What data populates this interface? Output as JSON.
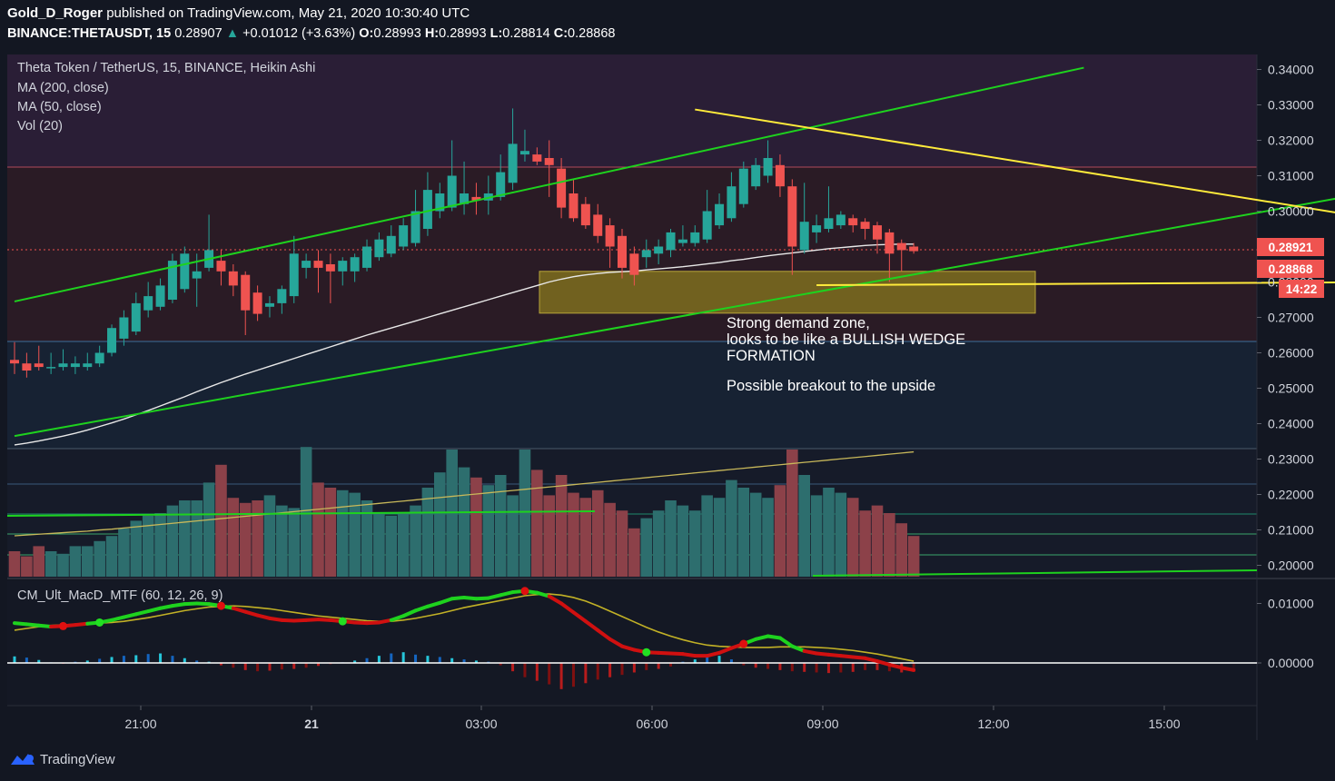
{
  "header": {
    "author": "Gold_D_Roger",
    "published_text": "published on TradingView.com, May 21, 2020 10:30:40 UTC",
    "symbol": "BINANCE:THETAUSDT, 15",
    "last": "0.28907",
    "arrow": "▲",
    "change": "+0.01012 (+3.63%)",
    "o_label": "O:",
    "o": "0.28993",
    "h_label": "H:",
    "h": "0.28993",
    "l_label": "L:",
    "l": "0.28814",
    "c_label": "C:",
    "c": "0.28868"
  },
  "legend": {
    "title": "Theta Token / TetherUS, 15, BINANCE, Heikin Ashi",
    "ma200": "MA (200, close)",
    "ma50": "MA (50, close)",
    "vol": "Vol (20)",
    "macd": "CM_Ult_MacD_MTF (60, 12, 26, 9)"
  },
  "annotation": {
    "line1": "Strong demand zone,",
    "line2": "looks to be like a BULLISH WEDGE",
    "line3": "FORMATION",
    "line4": "Possible breakout to the upside"
  },
  "price_tags": {
    "tag1": "0.28921",
    "tag2": "0.28868",
    "countdown": "14:22"
  },
  "footer": {
    "brand": "TradingView"
  },
  "colors": {
    "background": "#131722",
    "bull": "#26a69a",
    "bear": "#ef5350",
    "trend_green": "#1ed21e",
    "trend_yellow": "#ffeb3b",
    "demand_zone": "#8a7a1e"
  },
  "chart_data": [
    {
      "type": "candlestick",
      "title": "Theta Token / TetherUS, 15, BINANCE, Heikin Ashi",
      "y_axis_ticks": [
        "0.34000",
        "0.33000",
        "0.32000",
        "0.31000",
        "0.30000",
        "0.29000",
        "0.28000",
        "0.27000",
        "0.26000",
        "0.25000",
        "0.24000",
        "0.23000",
        "0.22000",
        "0.21000",
        "0.20000"
      ],
      "x_axis_ticks": [
        "21:00",
        "21",
        "03:00",
        "06:00",
        "09:00",
        "12:00",
        "15:00"
      ],
      "ylim": [
        0.197,
        0.343
      ],
      "candles": [
        {
          "o": 0.258,
          "h": 0.263,
          "l": 0.254,
          "c": 0.257
        },
        {
          "o": 0.257,
          "h": 0.26,
          "l": 0.253,
          "c": 0.255
        },
        {
          "o": 0.257,
          "h": 0.262,
          "l": 0.255,
          "c": 0.256
        },
        {
          "o": 0.256,
          "h": 0.26,
          "l": 0.254,
          "c": 0.256
        },
        {
          "o": 0.256,
          "h": 0.261,
          "l": 0.255,
          "c": 0.257
        },
        {
          "o": 0.256,
          "h": 0.259,
          "l": 0.254,
          "c": 0.257
        },
        {
          "o": 0.256,
          "h": 0.26,
          "l": 0.255,
          "c": 0.257
        },
        {
          "o": 0.257,
          "h": 0.262,
          "l": 0.256,
          "c": 0.26
        },
        {
          "o": 0.26,
          "h": 0.268,
          "l": 0.259,
          "c": 0.267
        },
        {
          "o": 0.264,
          "h": 0.272,
          "l": 0.262,
          "c": 0.27
        },
        {
          "o": 0.266,
          "h": 0.277,
          "l": 0.265,
          "c": 0.274
        },
        {
          "o": 0.272,
          "h": 0.28,
          "l": 0.27,
          "c": 0.276
        },
        {
          "o": 0.273,
          "h": 0.281,
          "l": 0.272,
          "c": 0.279
        },
        {
          "o": 0.275,
          "h": 0.288,
          "l": 0.274,
          "c": 0.286
        },
        {
          "o": 0.278,
          "h": 0.29,
          "l": 0.277,
          "c": 0.288
        },
        {
          "o": 0.281,
          "h": 0.288,
          "l": 0.273,
          "c": 0.283
        },
        {
          "o": 0.284,
          "h": 0.299,
          "l": 0.283,
          "c": 0.289
        },
        {
          "o": 0.286,
          "h": 0.289,
          "l": 0.279,
          "c": 0.283
        },
        {
          "o": 0.283,
          "h": 0.285,
          "l": 0.276,
          "c": 0.279
        },
        {
          "o": 0.282,
          "h": 0.283,
          "l": 0.265,
          "c": 0.272
        },
        {
          "o": 0.277,
          "h": 0.279,
          "l": 0.269,
          "c": 0.271
        },
        {
          "o": 0.273,
          "h": 0.276,
          "l": 0.27,
          "c": 0.274
        },
        {
          "o": 0.274,
          "h": 0.279,
          "l": 0.271,
          "c": 0.278
        },
        {
          "o": 0.276,
          "h": 0.293,
          "l": 0.274,
          "c": 0.288
        },
        {
          "o": 0.284,
          "h": 0.288,
          "l": 0.281,
          "c": 0.286
        },
        {
          "o": 0.286,
          "h": 0.289,
          "l": 0.277,
          "c": 0.284
        },
        {
          "o": 0.285,
          "h": 0.288,
          "l": 0.274,
          "c": 0.283
        },
        {
          "o": 0.283,
          "h": 0.287,
          "l": 0.279,
          "c": 0.286
        },
        {
          "o": 0.283,
          "h": 0.288,
          "l": 0.28,
          "c": 0.287
        },
        {
          "o": 0.284,
          "h": 0.292,
          "l": 0.283,
          "c": 0.29
        },
        {
          "o": 0.287,
          "h": 0.294,
          "l": 0.286,
          "c": 0.292
        },
        {
          "o": 0.288,
          "h": 0.296,
          "l": 0.287,
          "c": 0.293
        },
        {
          "o": 0.29,
          "h": 0.298,
          "l": 0.289,
          "c": 0.296
        },
        {
          "o": 0.291,
          "h": 0.306,
          "l": 0.29,
          "c": 0.3
        },
        {
          "o": 0.295,
          "h": 0.311,
          "l": 0.293,
          "c": 0.306
        },
        {
          "o": 0.3,
          "h": 0.308,
          "l": 0.298,
          "c": 0.305
        },
        {
          "o": 0.301,
          "h": 0.32,
          "l": 0.3,
          "c": 0.31
        },
        {
          "o": 0.302,
          "h": 0.314,
          "l": 0.299,
          "c": 0.305
        },
        {
          "o": 0.304,
          "h": 0.308,
          "l": 0.299,
          "c": 0.303
        },
        {
          "o": 0.303,
          "h": 0.31,
          "l": 0.299,
          "c": 0.305
        },
        {
          "o": 0.304,
          "h": 0.316,
          "l": 0.303,
          "c": 0.311
        },
        {
          "o": 0.308,
          "h": 0.329,
          "l": 0.306,
          "c": 0.319
        },
        {
          "o": 0.316,
          "h": 0.323,
          "l": 0.314,
          "c": 0.317
        },
        {
          "o": 0.316,
          "h": 0.318,
          "l": 0.313,
          "c": 0.314
        },
        {
          "o": 0.315,
          "h": 0.32,
          "l": 0.304,
          "c": 0.313
        },
        {
          "o": 0.312,
          "h": 0.315,
          "l": 0.298,
          "c": 0.301
        },
        {
          "o": 0.305,
          "h": 0.309,
          "l": 0.297,
          "c": 0.298
        },
        {
          "o": 0.302,
          "h": 0.304,
          "l": 0.295,
          "c": 0.296
        },
        {
          "o": 0.299,
          "h": 0.302,
          "l": 0.291,
          "c": 0.293
        },
        {
          "o": 0.296,
          "h": 0.298,
          "l": 0.284,
          "c": 0.29
        },
        {
          "o": 0.293,
          "h": 0.295,
          "l": 0.281,
          "c": 0.284
        },
        {
          "o": 0.288,
          "h": 0.29,
          "l": 0.279,
          "c": 0.282
        },
        {
          "o": 0.287,
          "h": 0.292,
          "l": 0.284,
          "c": 0.289
        },
        {
          "o": 0.288,
          "h": 0.292,
          "l": 0.285,
          "c": 0.29
        },
        {
          "o": 0.289,
          "h": 0.295,
          "l": 0.287,
          "c": 0.294
        },
        {
          "o": 0.291,
          "h": 0.296,
          "l": 0.29,
          "c": 0.292
        },
        {
          "o": 0.291,
          "h": 0.296,
          "l": 0.29,
          "c": 0.294
        },
        {
          "o": 0.292,
          "h": 0.306,
          "l": 0.291,
          "c": 0.3
        },
        {
          "o": 0.296,
          "h": 0.305,
          "l": 0.295,
          "c": 0.302
        },
        {
          "o": 0.298,
          "h": 0.311,
          "l": 0.297,
          "c": 0.307
        },
        {
          "o": 0.302,
          "h": 0.314,
          "l": 0.301,
          "c": 0.312
        },
        {
          "o": 0.307,
          "h": 0.315,
          "l": 0.306,
          "c": 0.313
        },
        {
          "o": 0.31,
          "h": 0.32,
          "l": 0.308,
          "c": 0.315
        },
        {
          "o": 0.313,
          "h": 0.316,
          "l": 0.304,
          "c": 0.307
        },
        {
          "o": 0.307,
          "h": 0.309,
          "l": 0.282,
          "c": 0.29
        },
        {
          "o": 0.289,
          "h": 0.308,
          "l": 0.288,
          "c": 0.297
        },
        {
          "o": 0.294,
          "h": 0.299,
          "l": 0.291,
          "c": 0.296
        },
        {
          "o": 0.295,
          "h": 0.307,
          "l": 0.294,
          "c": 0.298
        },
        {
          "o": 0.296,
          "h": 0.3,
          "l": 0.295,
          "c": 0.299
        },
        {
          "o": 0.298,
          "h": 0.299,
          "l": 0.294,
          "c": 0.296
        },
        {
          "o": 0.297,
          "h": 0.298,
          "l": 0.292,
          "c": 0.295
        },
        {
          "o": 0.296,
          "h": 0.297,
          "l": 0.288,
          "c": 0.292
        },
        {
          "o": 0.294,
          "h": 0.295,
          "l": 0.28,
          "c": 0.288
        },
        {
          "o": 0.291,
          "h": 0.292,
          "l": 0.283,
          "c": 0.289
        },
        {
          "o": 0.29,
          "h": 0.291,
          "l": 0.288,
          "c": 0.2887
        }
      ],
      "volume": [
        50,
        40,
        60,
        50,
        45,
        60,
        60,
        70,
        80,
        95,
        110,
        120,
        125,
        140,
        150,
        150,
        185,
        220,
        155,
        145,
        150,
        160,
        140,
        135,
        255,
        185,
        175,
        170,
        165,
        150,
        125,
        120,
        125,
        140,
        175,
        205,
        250,
        215,
        195,
        180,
        200,
        160,
        250,
        210,
        160,
        200,
        165,
        155,
        170,
        145,
        130,
        95,
        115,
        130,
        150,
        140,
        130,
        160,
        155,
        190,
        175,
        165,
        155,
        180,
        250,
        200,
        160,
        175,
        165,
        155,
        130,
        140,
        125,
        105,
        80
      ],
      "ma200": [
        0.234,
        0.2345,
        0.2351,
        0.2358,
        0.2365,
        0.2373,
        0.2382,
        0.2392,
        0.2402,
        0.2413,
        0.2425,
        0.2437,
        0.245,
        0.2463,
        0.2476,
        0.249,
        0.2503,
        0.2516,
        0.2528,
        0.254,
        0.2551,
        0.2562,
        0.2573,
        0.2584,
        0.2595,
        0.2606,
        0.2617,
        0.2628,
        0.2639,
        0.265,
        0.266,
        0.267,
        0.268,
        0.269,
        0.27,
        0.271,
        0.272,
        0.273,
        0.274,
        0.275,
        0.276,
        0.277,
        0.278,
        0.279,
        0.28,
        0.2808,
        0.2815,
        0.282,
        0.2824,
        0.2827,
        0.2829,
        0.2831,
        0.2834,
        0.2837,
        0.284,
        0.2843,
        0.2847,
        0.2851,
        0.2855,
        0.286,
        0.2864,
        0.2869,
        0.2874,
        0.2878,
        0.2882,
        0.2886,
        0.289,
        0.2894,
        0.2897,
        0.29,
        0.2903,
        0.2905,
        0.2906,
        0.2907,
        0.2907
      ],
      "ma50_volume": [
        95,
        97,
        99,
        101,
        103,
        105,
        107,
        110,
        112,
        115,
        118,
        121,
        124,
        127,
        130,
        133,
        136,
        139,
        142,
        145,
        148,
        151,
        154,
        157,
        160,
        163,
        166,
        169,
        172,
        175,
        178,
        181,
        184,
        187,
        190,
        193,
        196,
        199,
        202,
        205,
        208,
        211,
        214,
        217,
        220,
        223,
        226,
        229,
        232,
        235,
        238,
        241,
        244,
        247,
        250,
        253,
        256,
        259,
        262,
        265,
        268,
        271,
        274,
        277,
        280,
        283,
        286,
        289,
        292,
        295,
        298,
        301,
        304,
        307,
        310
      ],
      "trendlines": [
        {
          "name": "upper green channel",
          "color": "#1ed21e",
          "from": [
            0,
            0.2745
          ],
          "to": [
            88,
            0.3405
          ]
        },
        {
          "name": "lower green channel",
          "color": "#1ed21e",
          "from": [
            0,
            0.2365
          ],
          "to": [
            122,
            0.3117
          ]
        },
        {
          "name": "descending yellow",
          "color": "#ffeb3b",
          "from": [
            56,
            0.3287
          ],
          "to": [
            112,
            0.2978
          ]
        },
        {
          "name": "support yellow",
          "color": "#ffeb3b",
          "from": [
            66,
            0.2791
          ],
          "to": [
            110,
            0.2799
          ]
        }
      ],
      "demand_zone": {
        "y_top": 0.283,
        "y_bottom": 0.2712
      }
    },
    {
      "type": "bar+line",
      "title": "CM_Ult_MacD_MTF (60, 12, 26, 9)",
      "y_axis_ticks": [
        "0.01000",
        "0.00000"
      ],
      "ylim": [
        -0.0075,
        0.0145
      ],
      "macd": [
        0.0067,
        0.0065,
        0.0063,
        0.0061,
        0.0062,
        0.0064,
        0.0066,
        0.0068,
        0.0072,
        0.0077,
        0.0082,
        0.0087,
        0.0092,
        0.0096,
        0.0099,
        0.01,
        0.0099,
        0.0096,
        0.0092,
        0.0086,
        0.008,
        0.0075,
        0.0072,
        0.0071,
        0.0072,
        0.0073,
        0.0072,
        0.007,
        0.0068,
        0.0067,
        0.0068,
        0.0072,
        0.0079,
        0.0088,
        0.0095,
        0.0101,
        0.0108,
        0.011,
        0.0108,
        0.0109,
        0.0114,
        0.0119,
        0.0121,
        0.0118,
        0.0112,
        0.01,
        0.0085,
        0.007,
        0.0055,
        0.004,
        0.0028,
        0.0022,
        0.0018,
        0.0017,
        0.0016,
        0.0015,
        0.0012,
        0.0012,
        0.0017,
        0.0025,
        0.0032,
        0.004,
        0.0045,
        0.0042,
        0.0028,
        0.002,
        0.0016,
        0.0014,
        0.0012,
        0.001,
        0.0008,
        0.0003,
        -0.0003,
        -0.0008,
        -0.0012
      ],
      "signal": [
        0.0055,
        0.0058,
        0.0061,
        0.0063,
        0.0064,
        0.0065,
        0.0066,
        0.0067,
        0.0068,
        0.007,
        0.0073,
        0.0076,
        0.008,
        0.0084,
        0.0088,
        0.0091,
        0.0094,
        0.0095,
        0.0096,
        0.0095,
        0.0093,
        0.0091,
        0.0088,
        0.0085,
        0.0082,
        0.0079,
        0.0077,
        0.0075,
        0.0073,
        0.0071,
        0.007,
        0.007,
        0.0072,
        0.0075,
        0.0079,
        0.0083,
        0.0088,
        0.0093,
        0.0097,
        0.0101,
        0.0105,
        0.0109,
        0.0113,
        0.0115,
        0.0116,
        0.0114,
        0.011,
        0.0104,
        0.0096,
        0.0087,
        0.0078,
        0.0069,
        0.006,
        0.0052,
        0.0045,
        0.0039,
        0.0034,
        0.003,
        0.0028,
        0.0027,
        0.0026,
        0.0026,
        0.0026,
        0.0027,
        0.0027,
        0.0027,
        0.0026,
        0.0025,
        0.0023,
        0.0021,
        0.0018,
        0.0015,
        0.0011,
        0.0007,
        0.0003
      ],
      "histogram": [
        0.0011,
        0.0009,
        0.0005,
        0.0001,
        -0.0001,
        0.0002,
        0.0004,
        0.0007,
        0.001,
        0.0012,
        0.0013,
        0.0015,
        0.0016,
        0.0012,
        0.0008,
        0.0004,
        0.0002,
        -0.0004,
        -0.0008,
        -0.0012,
        -0.0014,
        -0.0013,
        -0.0011,
        -0.001,
        -0.0008,
        -0.0005,
        -0.0002,
        0.0001,
        0.0004,
        0.0008,
        0.0012,
        0.0016,
        0.0018,
        0.0014,
        0.0012,
        0.001,
        0.0008,
        0.0006,
        0.0004,
        0.0002,
        -0.0004,
        -0.0014,
        -0.0024,
        -0.003,
        -0.0036,
        -0.0044,
        -0.004,
        -0.0034,
        -0.0028,
        -0.0024,
        -0.002,
        -0.0016,
        -0.0012,
        -0.001,
        -0.0006,
        0.0002,
        0.0006,
        0.001,
        0.0012,
        0.0006,
        -0.0004,
        -0.0008,
        -0.001,
        -0.0012,
        -0.0014,
        -0.0015,
        -0.0016,
        -0.0017,
        -0.0016,
        -0.0015,
        -0.0012,
        -0.0012,
        -0.0014,
        -0.0016,
        -0.0015
      ],
      "cross_dots": [
        {
          "i": 4,
          "color": "#e01010"
        },
        {
          "i": 7,
          "color": "#22e022"
        },
        {
          "i": 17,
          "color": "#e01010"
        },
        {
          "i": 27,
          "color": "#22e022"
        },
        {
          "i": 42,
          "color": "#e01010"
        },
        {
          "i": 52,
          "color": "#22e022"
        },
        {
          "i": 60,
          "color": "#e01010"
        }
      ]
    }
  ]
}
